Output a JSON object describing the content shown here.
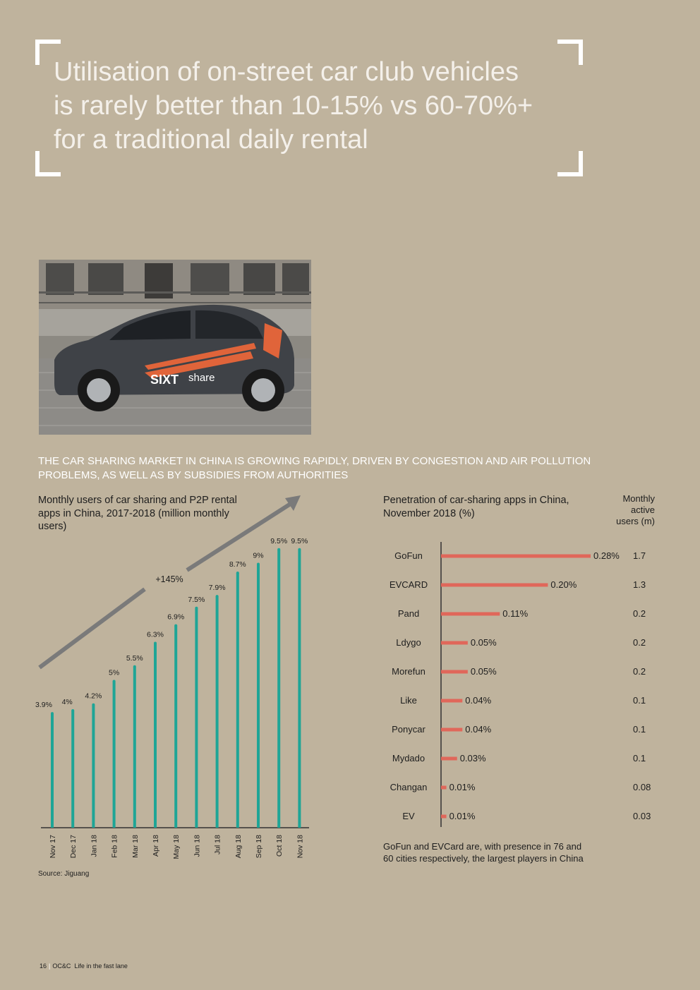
{
  "quote": {
    "lines": [
      "Utilisation of on-street car club vehicles",
      "is rarely better than 10-15% vs 60-70%+",
      "for a traditional daily rental"
    ]
  },
  "photo": {
    "badge_brand": "SIXT",
    "badge_word": "share"
  },
  "section_heading": {
    "lines": [
      "THE CAR SHARING MARKET IN CHINA IS GROWING RAPIDLY, DRIVEN BY CONGESTION AND AIR POLLUTION",
      "PROBLEMS, AS WELL AS BY SUBSIDIES FROM AUTHORITIES"
    ]
  },
  "chart_data": [
    {
      "type": "bar",
      "title": "Monthly users of car sharing and P2P rental apps in China, 2017-2018 (million monthly users)",
      "title_lines": [
        "Monthly users of car sharing and P2P rental",
        "apps in China, 2017-2018 (million monthly",
        "users)"
      ],
      "categories": [
        "Nov 17",
        "Dec 17",
        "Jan 18",
        "Feb 18",
        "Mar 18",
        "Apr 18",
        "May 18",
        "Jun 18",
        "Jul 18",
        "Aug 18",
        "Sep 18",
        "Oct 18",
        "Nov 18"
      ],
      "values": [
        3.9,
        4,
        4.2,
        5,
        5.5,
        6.3,
        6.9,
        7.5,
        7.9,
        8.7,
        9,
        9.5,
        9.5
      ],
      "labels": [
        "3.9%",
        "4%",
        "4.2%",
        "5%",
        "5.5%",
        "6.3%",
        "6.9%",
        "7.5%",
        "7.9%",
        "8.7%",
        "9%",
        "9.5%",
        "9.5%"
      ],
      "ylim": [
        0,
        10
      ],
      "annotation": "+145%",
      "xlabel": "",
      "ylabel": "",
      "color": "#1ea596"
    },
    {
      "type": "bar",
      "orientation": "horizontal",
      "title": "Penetration of car-sharing apps in China, November 2018 (%)",
      "title_lines": [
        "Penetration of car-sharing apps in China,",
        "November 2018 (%)"
      ],
      "categories": [
        "GoFun",
        "EVCARD",
        "Pand",
        "Ldygo",
        "Morefun",
        "Like",
        "Ponycar",
        "Mydado",
        "Changan",
        "EV"
      ],
      "values": [
        0.28,
        0.2,
        0.11,
        0.05,
        0.05,
        0.04,
        0.04,
        0.03,
        0.01,
        0.01
      ],
      "labels": [
        "0.28%",
        "0.20%",
        "0.11%",
        "0.05%",
        "0.05%",
        "0.04%",
        "0.04%",
        "0.03%",
        "0.01%",
        "0.01%"
      ],
      "xlim": [
        0,
        0.28
      ],
      "side_column_header": [
        "Monthly",
        "active",
        "users (m)"
      ],
      "side_column_values": [
        "1.7",
        "1.3",
        "0.2",
        "0.2",
        "0.2",
        "0.1",
        "0.1",
        "0.1",
        "0.08",
        "0.03"
      ],
      "color": "#e0675a"
    }
  ],
  "note": {
    "lines": [
      "GoFun and EVCard are, with presence in 76 and",
      "60 cities respectively, the largest players in China"
    ]
  },
  "source": "Source: Jiguang",
  "footer": {
    "page": "16",
    "brand": "OC&C",
    "title": "Life in the fast lane"
  }
}
